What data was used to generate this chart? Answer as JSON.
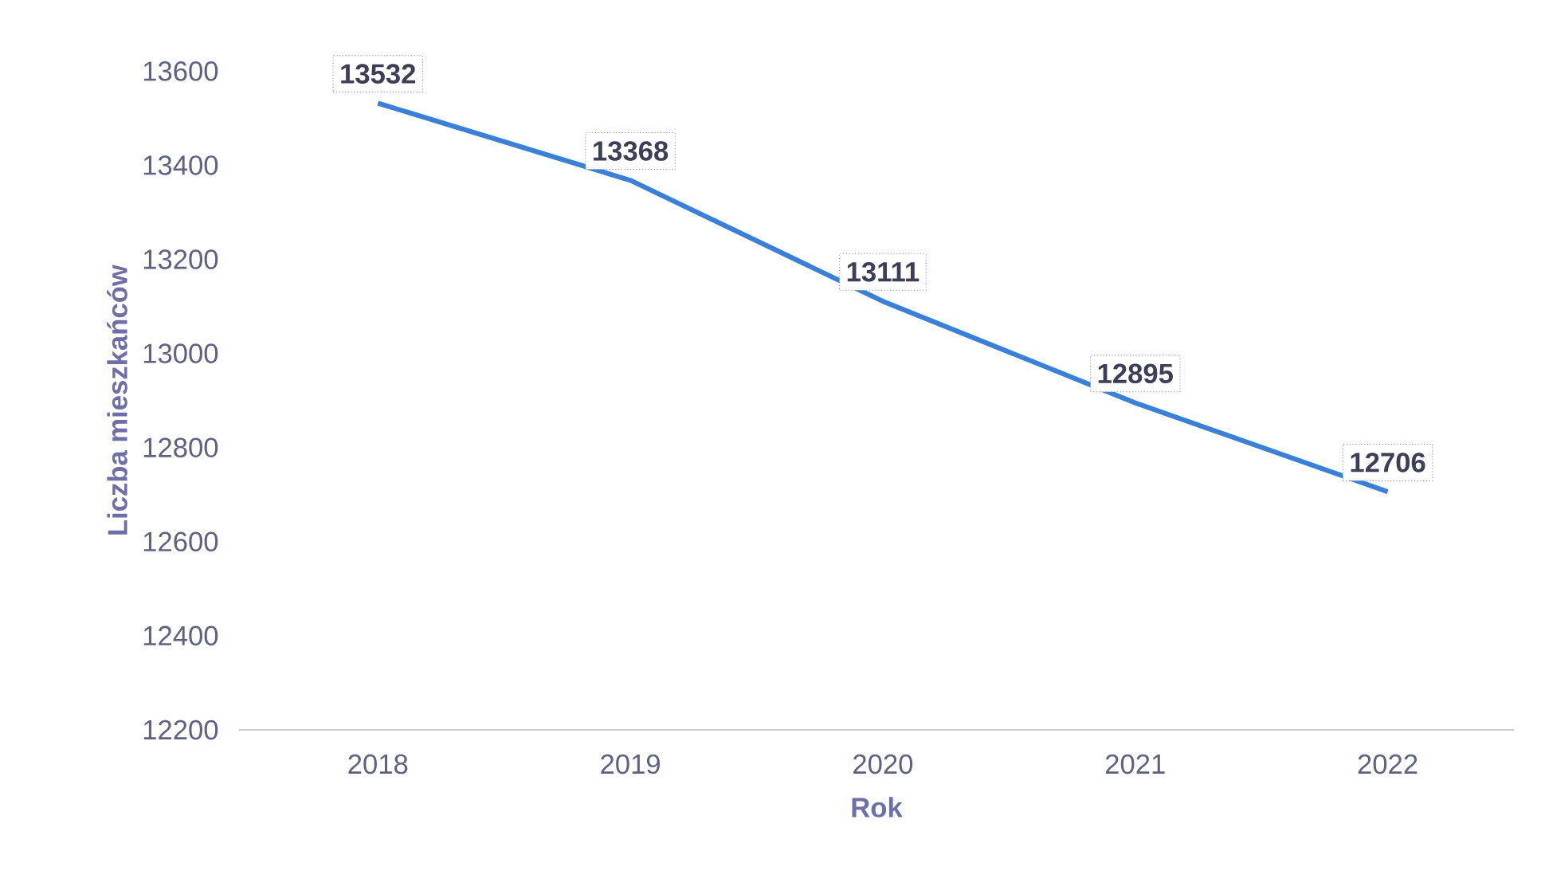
{
  "chart_data": {
    "type": "line",
    "xlabel": "Rok",
    "ylabel": "Liczba mieszkańców",
    "categories": [
      "2018",
      "2019",
      "2020",
      "2021",
      "2022"
    ],
    "values": [
      13532,
      13368,
      13111,
      12895,
      12706
    ],
    "color": "#3a7fd8",
    "ylim": [
      12200,
      13600
    ],
    "yticks": [
      12200,
      12400,
      12600,
      12800,
      13000,
      13200,
      13400,
      13600
    ],
    "data_labels": true
  }
}
